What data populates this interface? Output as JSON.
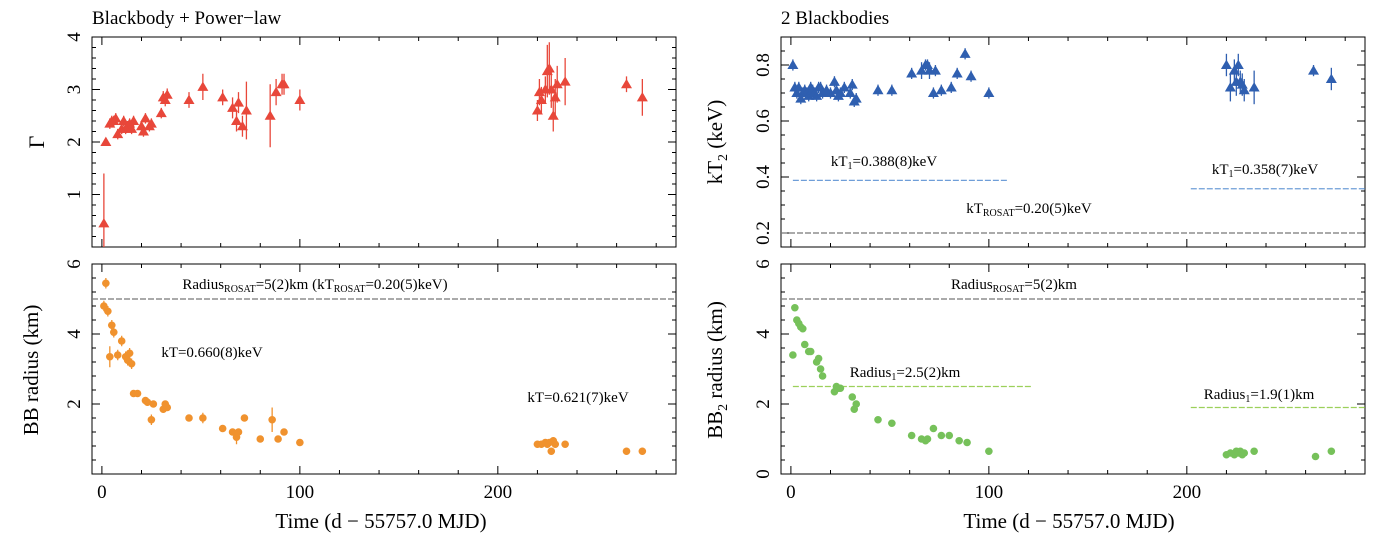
{
  "colors": {
    "powerlaw": "#e8473a",
    "bb_radius": "#f0922e",
    "kt2": "#2f5fb0",
    "bb2_radius": "#76c15a",
    "kt1_line": "#6f9ed8",
    "rosat_line": "#777777",
    "radius1_line": "#9cd05a"
  },
  "left_title": "Blackbody + Power−law",
  "right_title": "2 Blackbodies",
  "xlabel": "Time (d − 55757.0 MJD)",
  "chart_data": [
    {
      "type": "scatter",
      "panel": "top-left",
      "title": "Blackbody + Power−law",
      "ylabel": "Γ",
      "xlim": [
        -5,
        290
      ],
      "ylim": [
        0,
        4
      ],
      "xticks": [
        0,
        100,
        200
      ],
      "yticks": [
        1,
        2,
        3,
        4
      ],
      "marker": "triangle",
      "series": [
        {
          "x": [
            1,
            2,
            4,
            5,
            6,
            7,
            8,
            10,
            11,
            12,
            13,
            14,
            15,
            16,
            20,
            21,
            22,
            24,
            25,
            30,
            31,
            32,
            33,
            44,
            51,
            61,
            66,
            68,
            69,
            71,
            73,
            85,
            88,
            91,
            92,
            100,
            220,
            221,
            222,
            224,
            225,
            226,
            227,
            228,
            229,
            230,
            234,
            265,
            273
          ],
          "y": [
            0.45,
            2.0,
            2.35,
            2.4,
            2.4,
            2.45,
            2.15,
            2.25,
            2.4,
            2.25,
            2.3,
            2.35,
            2.25,
            2.4,
            2.3,
            2.2,
            2.45,
            2.3,
            2.35,
            2.55,
            2.85,
            2.8,
            2.9,
            2.8,
            3.05,
            2.85,
            2.65,
            2.4,
            2.75,
            2.3,
            2.6,
            2.5,
            2.95,
            3.1,
            3.1,
            2.8,
            2.6,
            2.95,
            2.8,
            3.0,
            3.35,
            3.4,
            3.0,
            2.5,
            2.85,
            3.1,
            3.15,
            3.1,
            2.85
          ],
          "err": [
            0.95,
            0.07,
            0.1,
            0.1,
            0.1,
            0.1,
            0.1,
            0.1,
            0.1,
            0.1,
            0.1,
            0.1,
            0.1,
            0.1,
            0.1,
            0.1,
            0.1,
            0.1,
            0.1,
            0.1,
            0.12,
            0.12,
            0.12,
            0.15,
            0.25,
            0.15,
            0.2,
            0.2,
            0.2,
            0.2,
            0.55,
            0.6,
            0.25,
            0.2,
            0.2,
            0.2,
            0.2,
            0.25,
            0.25,
            0.25,
            0.5,
            0.5,
            0.35,
            0.3,
            0.35,
            0.35,
            0.45,
            0.15,
            0.35
          ]
        }
      ],
      "annotations": []
    },
    {
      "type": "scatter",
      "panel": "bottom-left",
      "ylabel": "BB radius (km)",
      "xlabel": "Time (d − 55757.0 MJD)",
      "xlim": [
        -5,
        290
      ],
      "ylim": [
        0,
        6
      ],
      "xticks": [
        0,
        100,
        200
      ],
      "yticks": [
        2,
        4,
        6
      ],
      "marker": "circle",
      "series": [
        {
          "x": [
            1,
            2,
            3,
            4,
            5,
            6,
            8,
            10,
            12,
            13,
            14,
            15,
            16,
            18,
            22,
            23,
            25,
            26,
            31,
            32,
            33,
            44,
            51,
            61,
            66,
            68,
            69,
            72,
            80,
            86,
            89,
            92,
            100,
            220,
            222,
            224,
            225,
            226,
            227,
            228,
            229,
            234,
            265,
            273
          ],
          "y": [
            4.8,
            5.45,
            4.65,
            3.35,
            4.25,
            4.05,
            3.4,
            3.8,
            3.35,
            3.25,
            3.45,
            3.15,
            2.3,
            2.3,
            2.1,
            2.05,
            1.55,
            2.0,
            1.85,
            2.0,
            1.9,
            1.6,
            1.6,
            1.3,
            1.2,
            1.05,
            1.2,
            1.6,
            1.0,
            1.55,
            1.0,
            1.2,
            0.9,
            0.85,
            0.85,
            0.9,
            0.85,
            0.9,
            0.65,
            0.95,
            0.85,
            0.85,
            0.65,
            0.65
          ],
          "err": [
            0.15,
            0.15,
            0.15,
            0.3,
            0.15,
            0.15,
            0.15,
            0.15,
            0.15,
            0.15,
            0.15,
            0.15,
            0.1,
            0.1,
            0.1,
            0.1,
            0.15,
            0.1,
            0.1,
            0.1,
            0.1,
            0.1,
            0.15,
            0.1,
            0.1,
            0.2,
            0.1,
            0.1,
            0.1,
            0.35,
            0.1,
            0.1,
            0.1,
            0.1,
            0.1,
            0.1,
            0.1,
            0.1,
            0.1,
            0.1,
            0.1,
            0.1,
            0.1,
            0.1
          ]
        }
      ],
      "hlines": [
        {
          "y": 5.0,
          "x0": -5,
          "x1": 290,
          "color": "rosat_line",
          "label": "Radius_ROSAT=5(2)km (kT_ROSAT=0.20(5)keV)"
        }
      ],
      "annotations": [
        {
          "text": "kT=0.660(8)keV",
          "x": 24,
          "y": 3.6,
          "color": "bb_radius"
        },
        {
          "text": "kT=0.621(7)keV",
          "x": 253,
          "y": 2.25,
          "color": "bb_radius"
        }
      ]
    },
    {
      "type": "scatter",
      "panel": "top-right",
      "title": "2 Blackbodies",
      "ylabel": "kT_2 (keV)",
      "xlim": [
        -5,
        290
      ],
      "ylim": [
        0.15,
        0.9
      ],
      "xticks": [
        0,
        100,
        200
      ],
      "yticks": [
        0.2,
        0.4,
        0.6,
        0.8
      ],
      "marker": "triangle",
      "series": [
        {
          "x": [
            1,
            2,
            3,
            4,
            5,
            6,
            7,
            8,
            9,
            10,
            11,
            12,
            13,
            14,
            15,
            16,
            18,
            20,
            22,
            23,
            24,
            25,
            27,
            30,
            31,
            32,
            33,
            44,
            51,
            61,
            66,
            68,
            69,
            70,
            72,
            73,
            76,
            81,
            84,
            88,
            91,
            100,
            220,
            222,
            224,
            225,
            226,
            227,
            228,
            229,
            234,
            264,
            273
          ],
          "y": [
            0.8,
            0.72,
            0.7,
            0.72,
            0.68,
            0.7,
            0.71,
            0.7,
            0.69,
            0.72,
            0.71,
            0.7,
            0.69,
            0.72,
            0.72,
            0.7,
            0.71,
            0.7,
            0.74,
            0.71,
            0.69,
            0.7,
            0.72,
            0.7,
            0.73,
            0.67,
            0.68,
            0.71,
            0.71,
            0.77,
            0.78,
            0.8,
            0.8,
            0.78,
            0.7,
            0.78,
            0.71,
            0.72,
            0.77,
            0.84,
            0.76,
            0.7,
            0.8,
            0.72,
            0.78,
            0.74,
            0.8,
            0.74,
            0.73,
            0.71,
            0.72,
            0.78,
            0.75
          ],
          "err": [
            0.02,
            0.02,
            0.02,
            0.02,
            0.02,
            0.02,
            0.02,
            0.02,
            0.02,
            0.02,
            0.02,
            0.02,
            0.02,
            0.02,
            0.02,
            0.02,
            0.02,
            0.02,
            0.02,
            0.02,
            0.02,
            0.02,
            0.02,
            0.02,
            0.02,
            0.02,
            0.02,
            0.02,
            0.02,
            0.02,
            0.03,
            0.02,
            0.02,
            0.03,
            0.02,
            0.02,
            0.02,
            0.02,
            0.02,
            0.02,
            0.02,
            0.02,
            0.04,
            0.05,
            0.04,
            0.05,
            0.04,
            0.04,
            0.04,
            0.04,
            0.06,
            0.02,
            0.04
          ]
        }
      ],
      "hlines": [
        {
          "y": 0.388,
          "x0": 1,
          "x1": 110,
          "color": "kt1_line",
          "label": "kT_1=0.388(8)keV"
        },
        {
          "y": 0.358,
          "x0": 202,
          "x1": 290,
          "color": "kt1_line",
          "label": "kT_1=0.358(7)keV"
        },
        {
          "y": 0.2,
          "x0": -5,
          "x1": 290,
          "color": "rosat_line",
          "label": "kT_ROSAT=0.20(5)keV"
        }
      ],
      "annotations": []
    },
    {
      "type": "scatter",
      "panel": "bottom-right",
      "ylabel": "BB_2 radius (km)",
      "xlabel": "Time (d − 55757.0 MJD)",
      "xlim": [
        -5,
        290
      ],
      "ylim": [
        0,
        6
      ],
      "xticks": [
        0,
        100,
        200
      ],
      "yticks": [
        0,
        2,
        4,
        6
      ],
      "marker": "circle",
      "series": [
        {
          "x": [
            1,
            2,
            3,
            4,
            5,
            6,
            7,
            9,
            10,
            13,
            14,
            15,
            16,
            22,
            23,
            24,
            25,
            31,
            32,
            33,
            44,
            51,
            61,
            66,
            68,
            69,
            72,
            76,
            80,
            85,
            89,
            100,
            220,
            222,
            224,
            225,
            226,
            227,
            228,
            229,
            234,
            265,
            273
          ],
          "y": [
            3.4,
            4.75,
            4.4,
            4.3,
            4.2,
            4.15,
            3.7,
            3.5,
            3.5,
            3.2,
            3.3,
            3.0,
            2.8,
            2.35,
            2.5,
            2.45,
            2.45,
            2.2,
            1.85,
            2.0,
            1.55,
            1.45,
            1.1,
            1.0,
            0.95,
            1.0,
            1.3,
            1.1,
            1.1,
            0.95,
            0.9,
            0.65,
            0.55,
            0.6,
            0.55,
            0.65,
            0.6,
            0.65,
            0.55,
            0.6,
            0.65,
            0.5,
            0.65
          ]
        }
      ],
      "hlines": [
        {
          "y": 5.0,
          "x0": -5,
          "x1": 290,
          "color": "rosat_line",
          "label": "Radius_ROSAT=5(2)km"
        },
        {
          "y": 2.5,
          "x0": 1,
          "x1": 122,
          "color": "radius1_line",
          "label": "Radius_1=2.5(2)km"
        },
        {
          "y": 1.9,
          "x0": 202,
          "x1": 290,
          "color": "radius1_line",
          "label": "Radius_1=1.9(1)km"
        }
      ],
      "annotations": []
    }
  ]
}
